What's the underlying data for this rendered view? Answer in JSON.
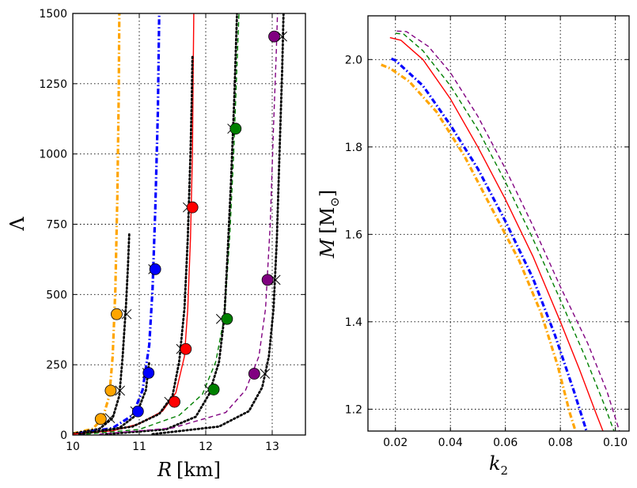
{
  "colors": {
    "orange": "#ffa500",
    "blue": "#0000ff",
    "red": "#ff0000",
    "green": "#008000",
    "purple": "#800080",
    "black": "#000000"
  },
  "chart_data": [
    {
      "type": "line",
      "panel": "left",
      "xlabel_var": "R",
      "xlabel_unit": "[km]",
      "ylabel": "Λ",
      "xlim": [
        10,
        13.5
      ],
      "ylim": [
        0,
        1500
      ],
      "xticks": [
        10,
        11,
        12,
        13
      ],
      "yticks": [
        0,
        250,
        500,
        750,
        1000,
        1250,
        1500
      ],
      "grid": true,
      "series": [
        {
          "name": "orange",
          "color": "orange",
          "style": "dashdot-thick",
          "points": [
            [
              10.0,
              5
            ],
            [
              10.3,
              22
            ],
            [
              10.45,
              60
            ],
            [
              10.55,
              140
            ],
            [
              10.6,
              280
            ],
            [
              10.64,
              520
            ],
            [
              10.67,
              850
            ],
            [
              10.69,
              1200
            ],
            [
              10.7,
              1500
            ]
          ],
          "dots": [
            [
              10.42,
              57
            ],
            [
              10.57,
              158
            ],
            [
              10.66,
              430
            ]
          ]
        },
        {
          "name": "orange-dotted",
          "color": "black",
          "style": "dotted",
          "points": [
            [
              10.0,
              5
            ],
            [
              10.4,
              22
            ],
            [
              10.6,
              60
            ],
            [
              10.7,
              140
            ],
            [
              10.75,
              280
            ],
            [
              10.8,
              460
            ],
            [
              10.83,
              600
            ],
            [
              10.85,
              720
            ]
          ],
          "crosses": [
            [
              10.56,
              60
            ],
            [
              10.71,
              158
            ],
            [
              10.81,
              430
            ]
          ]
        },
        {
          "name": "blue",
          "color": "blue",
          "style": "dashdot-thick",
          "points": [
            [
              10.1,
              5
            ],
            [
              10.6,
              25
            ],
            [
              10.9,
              70
            ],
            [
              11.05,
              160
            ],
            [
              11.15,
              320
            ],
            [
              11.2,
              520
            ],
            [
              11.24,
              800
            ],
            [
              11.28,
              1150
            ],
            [
              11.3,
              1500
            ]
          ],
          "dots": [
            [
              10.98,
              84
            ],
            [
              11.14,
              221
            ],
            [
              11.24,
              590
            ]
          ]
        },
        {
          "name": "blue-dotted",
          "color": "black",
          "style": "dotted",
          "points": [
            [
              10.1,
              5
            ],
            [
              10.7,
              25
            ],
            [
              10.95,
              70
            ],
            [
              11.1,
              160
            ],
            [
              11.15,
              260
            ]
          ],
          "crosses": [
            [
              10.94,
              84
            ],
            [
              11.12,
              221
            ],
            [
              11.21,
              590
            ]
          ]
        },
        {
          "name": "red",
          "color": "red",
          "style": "solid",
          "points": [
            [
              10.0,
              3
            ],
            [
              10.6,
              15
            ],
            [
              11.0,
              40
            ],
            [
              11.35,
              85
            ],
            [
              11.55,
              150
            ],
            [
              11.68,
              280
            ],
            [
              11.73,
              450
            ],
            [
              11.77,
              700
            ],
            [
              11.8,
              1000
            ],
            [
              11.81,
              1250
            ],
            [
              11.82,
              1500
            ]
          ],
          "dots": [
            [
              11.53,
              118
            ],
            [
              11.7,
              306
            ],
            [
              11.8,
              810
            ]
          ]
        },
        {
          "name": "red-dotted",
          "color": "black",
          "style": "dotted",
          "points": [
            [
              10.1,
              3
            ],
            [
              10.9,
              30
            ],
            [
              11.3,
              75
            ],
            [
              11.5,
              140
            ],
            [
              11.6,
              260
            ],
            [
              11.68,
              450
            ],
            [
              11.73,
              700
            ],
            [
              11.77,
              1000
            ],
            [
              11.79,
              1200
            ],
            [
              11.8,
              1350
            ]
          ],
          "crosses": [
            [
              11.45,
              118
            ],
            [
              11.63,
              306
            ],
            [
              11.73,
              810
            ]
          ]
        },
        {
          "name": "green",
          "color": "green",
          "style": "dashed",
          "points": [
            [
              10.2,
              3
            ],
            [
              11.0,
              20
            ],
            [
              11.6,
              70
            ],
            [
              11.95,
              145
            ],
            [
              12.15,
              260
            ],
            [
              12.28,
              420
            ],
            [
              12.36,
              700
            ],
            [
              12.42,
              1000
            ],
            [
              12.46,
              1250
            ],
            [
              12.5,
              1500
            ]
          ],
          "dots": [
            [
              12.12,
              162
            ],
            [
              12.32,
              413
            ],
            [
              12.45,
              1090
            ]
          ]
        },
        {
          "name": "green-dotted",
          "color": "black",
          "style": "dotted",
          "points": [
            [
              10.5,
              3
            ],
            [
              11.4,
              20
            ],
            [
              11.85,
              65
            ],
            [
              12.05,
              145
            ],
            [
              12.2,
              260
            ],
            [
              12.28,
              420
            ],
            [
              12.33,
              650
            ],
            [
              12.38,
              900
            ],
            [
              12.43,
              1200
            ],
            [
              12.47,
              1500
            ]
          ],
          "crosses": [
            [
              12.05,
              162
            ],
            [
              12.23,
              413
            ],
            [
              12.4,
              1090
            ]
          ]
        },
        {
          "name": "purple",
          "color": "purple",
          "style": "dashed",
          "points": [
            [
              10.4,
              3
            ],
            [
              11.5,
              25
            ],
            [
              12.3,
              80
            ],
            [
              12.6,
              160
            ],
            [
              12.8,
              280
            ],
            [
              12.9,
              450
            ],
            [
              12.97,
              750
            ],
            [
              13.02,
              1100
            ],
            [
              13.06,
              1350
            ],
            [
              13.08,
              1500
            ]
          ],
          "dots": [
            [
              12.73,
              218
            ],
            [
              12.93,
              552
            ],
            [
              13.03,
              1418
            ]
          ]
        },
        {
          "name": "purple-dotted",
          "color": "black",
          "style": "dotted",
          "points": [
            [
              11.2,
              3
            ],
            [
              12.2,
              30
            ],
            [
              12.65,
              85
            ],
            [
              12.85,
              170
            ],
            [
              12.95,
              280
            ],
            [
              13.02,
              450
            ],
            [
              13.07,
              700
            ],
            [
              13.11,
              1000
            ],
            [
              13.15,
              1300
            ],
            [
              13.17,
              1500
            ]
          ],
          "crosses": [
            [
              12.89,
              218
            ],
            [
              13.05,
              552
            ],
            [
              13.15,
              1418
            ]
          ]
        }
      ]
    },
    {
      "type": "line",
      "panel": "right",
      "xlabel_var": "k",
      "xlabel_sub": "2",
      "ylabel_var": "M",
      "ylabel_unit": "[M",
      "ylabel_sub": "⊙",
      "ylabel_close": "]",
      "xlim": [
        0.01,
        0.105
      ],
      "ylim": [
        1.15,
        2.1
      ],
      "xticks": [
        0.02,
        0.04,
        0.06,
        0.08,
        0.1
      ],
      "xticklabels": [
        "0.02",
        "0.04",
        "0.06",
        "0.08",
        "0.10"
      ],
      "yticks": [
        1.2,
        1.4,
        1.6,
        1.8,
        2.0
      ],
      "yticklabels": [
        "1.2",
        "1.4",
        "1.6",
        "1.8",
        "2.0"
      ],
      "grid": true,
      "series": [
        {
          "name": "orange",
          "color": "orange",
          "style": "dashdot-thick",
          "points": [
            [
              0.0148,
              1.988
            ],
            [
              0.018,
              1.98
            ],
            [
              0.025,
              1.95
            ],
            [
              0.035,
              1.88
            ],
            [
              0.045,
              1.78
            ],
            [
              0.055,
              1.66
            ],
            [
              0.065,
              1.54
            ],
            [
              0.073,
              1.42
            ],
            [
              0.079,
              1.3
            ],
            [
              0.0835,
              1.19
            ],
            [
              0.0855,
              1.15
            ]
          ]
        },
        {
          "name": "blue",
          "color": "blue",
          "style": "dashdot-thick",
          "points": [
            [
              0.0185,
              2.002
            ],
            [
              0.02,
              1.998
            ],
            [
              0.03,
              1.94
            ],
            [
              0.04,
              1.85
            ],
            [
              0.05,
              1.75
            ],
            [
              0.06,
              1.63
            ],
            [
              0.07,
              1.5
            ],
            [
              0.078,
              1.37
            ],
            [
              0.085,
              1.24
            ],
            [
              0.0885,
              1.17
            ],
            [
              0.0895,
              1.15
            ]
          ]
        },
        {
          "name": "red",
          "color": "red",
          "style": "solid",
          "points": [
            [
              0.018,
              2.05
            ],
            [
              0.022,
              2.044
            ],
            [
              0.03,
              2.0
            ],
            [
              0.04,
              1.91
            ],
            [
              0.05,
              1.8
            ],
            [
              0.06,
              1.68
            ],
            [
              0.07,
              1.55
            ],
            [
              0.08,
              1.4
            ],
            [
              0.087,
              1.29
            ],
            [
              0.093,
              1.19
            ],
            [
              0.0955,
              1.15
            ]
          ]
        },
        {
          "name": "green",
          "color": "green",
          "style": "dashed",
          "points": [
            [
              0.02,
              2.06
            ],
            [
              0.023,
              2.058
            ],
            [
              0.03,
              2.02
            ],
            [
              0.04,
              1.94
            ],
            [
              0.05,
              1.84
            ],
            [
              0.06,
              1.72
            ],
            [
              0.07,
              1.59
            ],
            [
              0.08,
              1.45
            ],
            [
              0.089,
              1.32
            ],
            [
              0.096,
              1.21
            ],
            [
              0.0995,
              1.15
            ]
          ]
        },
        {
          "name": "purple",
          "color": "purple",
          "style": "dashed",
          "points": [
            [
              0.0205,
              2.065
            ],
            [
              0.024,
              2.064
            ],
            [
              0.032,
              2.03
            ],
            [
              0.04,
              1.97
            ],
            [
              0.05,
              1.87
            ],
            [
              0.06,
              1.75
            ],
            [
              0.07,
              1.62
            ],
            [
              0.08,
              1.48
            ],
            [
              0.09,
              1.35
            ],
            [
              0.097,
              1.24
            ],
            [
              0.1015,
              1.15
            ]
          ]
        }
      ]
    }
  ]
}
